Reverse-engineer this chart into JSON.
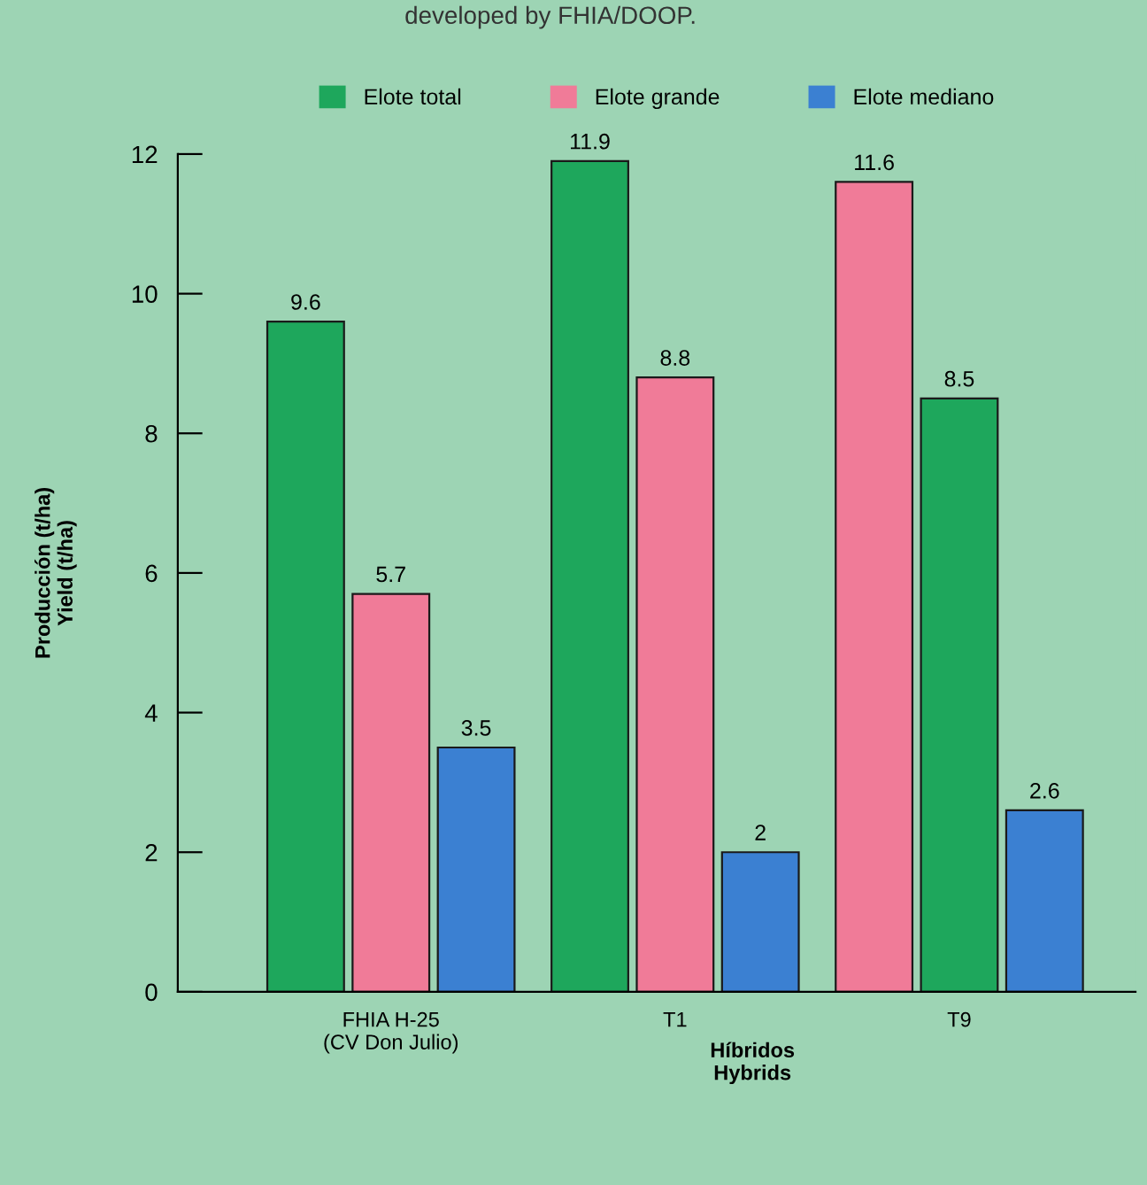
{
  "chart_data": {
    "type": "bar",
    "title": "developed by FHIA/DOOP.",
    "categories": [
      "FHIA H-25\n(CV Don Julio)",
      "T1",
      "T9"
    ],
    "series": [
      {
        "name": "Elote total",
        "color": "#1ea75c",
        "colors": [
          "#1ea75c",
          "#1ea75c",
          "#f07b98"
        ],
        "values": [
          9.6,
          11.9,
          11.6
        ]
      },
      {
        "name": "Elote grande",
        "color": "#f07b98",
        "colors": [
          "#f07b98",
          "#f07b98",
          "#1ea75c"
        ],
        "values": [
          5.7,
          8.8,
          8.5
        ]
      },
      {
        "name": "Elote mediano",
        "color": "#3b80d2",
        "colors": [
          "#3b80d2",
          "#3b80d2",
          "#3b80d2"
        ],
        "values": [
          3.5,
          2,
          2.6
        ]
      }
    ],
    "xlabel": "Híbridos\nHybrids",
    "ylabel": "Producción (t/ha)\nYield (t/ha)",
    "ylim": [
      0,
      12
    ],
    "yticks": [
      0,
      2,
      4,
      6,
      8,
      10,
      12
    ],
    "data_labels": true,
    "legend": "top",
    "grid": false
  }
}
